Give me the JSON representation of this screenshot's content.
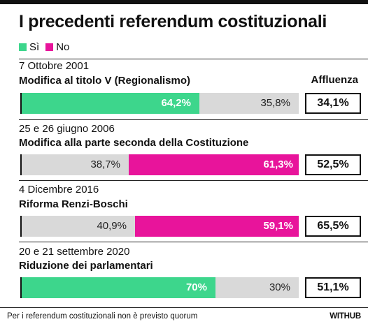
{
  "title": "I precedenti referendum costituzionali",
  "legend": {
    "yes": "Sì",
    "no": "No"
  },
  "colors": {
    "yes": "#3dd68c",
    "no": "#e8149b",
    "neutral": "#d9d9d9",
    "frame": "#111111"
  },
  "turnout_header": "Affluenza",
  "footer": {
    "note": "Per i referendum costituzionali non è previsto quorum",
    "brand": "WITHUB"
  },
  "chart_data": {
    "type": "bar",
    "stacked": true,
    "orientation": "horizontal",
    "title": "I precedenti referendum costituzionali",
    "series_names": [
      "Sì",
      "No"
    ],
    "categories": [
      "Modifica al titolo V (Regionalismo)",
      "Modifica alla parte seconda della Costituzione",
      "Riforma Renzi-Boschi",
      "Riduzione dei parlamentari"
    ],
    "items": [
      {
        "date": "7 Ottobre 2001",
        "name": "Modifica al titolo V (Regionalismo)",
        "yes": 64.2,
        "no": 35.8,
        "yes_label": "64,2%",
        "no_label": "35,8%",
        "turnout": 34.1,
        "turnout_label": "34,1%"
      },
      {
        "date": "25 e 26 giugno 2006",
        "name": "Modifica alla parte seconda della Costituzione",
        "yes": 38.7,
        "no": 61.3,
        "yes_label": "38,7%",
        "no_label": "61,3%",
        "turnout": 52.5,
        "turnout_label": "52,5%"
      },
      {
        "date": "4 Dicembre 2016",
        "name": "Riforma Renzi-Boschi",
        "yes": 40.9,
        "no": 59.1,
        "yes_label": "40,9%",
        "no_label": "59,1%",
        "turnout": 65.5,
        "turnout_label": "65,5%"
      },
      {
        "date": "20 e 21 settembre 2020",
        "name": "Riduzione dei parlamentari",
        "yes": 70,
        "no": 30,
        "yes_label": "70%",
        "no_label": "30%",
        "turnout": 51.1,
        "turnout_label": "51,1%"
      }
    ]
  }
}
